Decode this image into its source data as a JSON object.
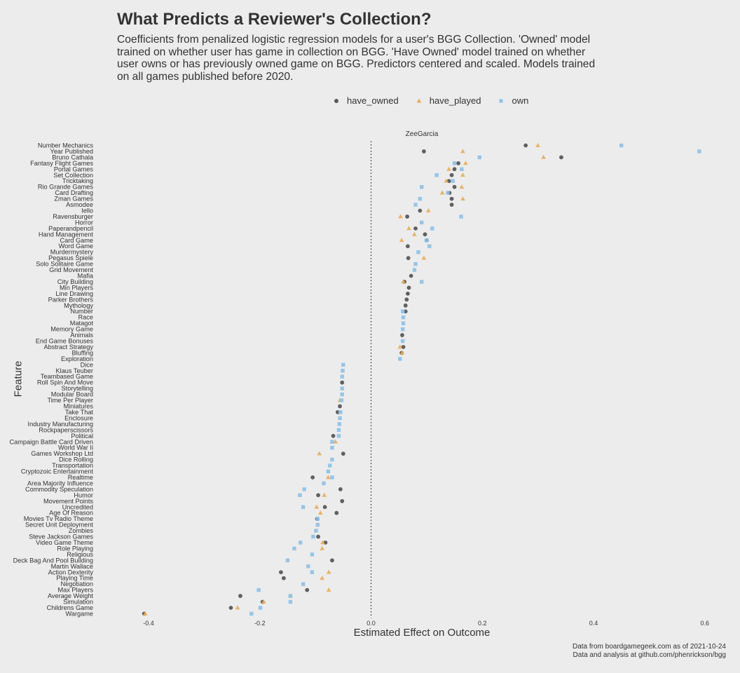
{
  "header": {
    "title": "What Predicts a Reviewer's Collection?",
    "subtitle": "Coefficients from penalized logistic regression models for a user's BGG Collection. 'Owned' model trained on whether user has game in collection on BGG. 'Have Owned' model trained on whether user owns or has previously owned game on BGG. Predictors centered and scaled. Models trained on all games published before 2020."
  },
  "legend": {
    "items": [
      {
        "label": "have_owned",
        "color": "#595959",
        "shape": "circle"
      },
      {
        "label": "have_played",
        "color": "#e6ae5c",
        "shape": "triangle"
      },
      {
        "label": "own",
        "color": "#8cc1e8",
        "shape": "square"
      }
    ]
  },
  "facet": "ZeeGarcia",
  "caption": {
    "line1": "Data from boardgamegeek.com as of 2021-10-24",
    "line2": "Data and analysis at github.com/phenrickson/bgg"
  },
  "chart_data": {
    "type": "scatter",
    "xlabel": "Estimated Effect on Outcome",
    "ylabel": "Feature",
    "xlim": [
      -0.44,
      0.64
    ],
    "x_ticks": [
      -0.4,
      -0.2,
      0.0,
      0.2,
      0.4,
      0.6
    ],
    "x_tick_labels": [
      "-0.4",
      "-0.2",
      "0.0",
      "0.2",
      "0.4",
      "0.6"
    ],
    "reference_line_x": 0,
    "grid": false,
    "legend_position": "top",
    "categories": [
      "Number Mechanics",
      "Year Published",
      "Bruno Cathala",
      "Fantasy Flight Games",
      "Portal Games",
      "Set Collection",
      "Tricktaking",
      "Rio Grande Games",
      "Card Drafting",
      "Zman Games",
      "Asmodee",
      "Iello",
      "Ravensburger",
      "Horror",
      "Paperandpencil",
      "Hand Management",
      "Card Game",
      "Word Game",
      "Murdermystery",
      "Pegasus Spiele",
      "Solo Solitaire Game",
      "Grid Movement",
      "Mafia",
      "City Building",
      "Min Players",
      "Line Drawing",
      "Parker Brothers",
      "Mythology",
      "Number",
      "Race",
      "Matagot",
      "Memory Game",
      "Animals",
      "End Game Bonuses",
      "Abstract Strategy",
      "Bluffing",
      "Exploration",
      "Dice",
      "Klaus Teuber",
      "Teambased Game",
      "Roll Spin And Move",
      "Storytelling",
      "Modular Board",
      "Time Per Player",
      "Miniatures",
      "Take That",
      "Enclosure",
      "Industry Manufacturing",
      "Rockpaperscissors",
      "Political",
      "Campaign Battle Card Driven",
      "World War Ii",
      "Games Workshop Ltd",
      "Dice Rolling",
      "Transportation",
      "Cryptozoic Entertainment",
      "Realtime",
      "Area Majority Influence",
      "Commodity Speculation",
      "Humor",
      "Movement Points",
      "Uncredited",
      "Age Of Reason",
      "Movies Tv Radio Theme",
      "Secret Unit Deployment",
      "Zombies",
      "Steve Jackson Games",
      "Video Game Theme",
      "Role Playing",
      "Religious",
      "Deck Bag And Pool Building",
      "Martin Wallace",
      "Action Dexterity",
      "Playing Time",
      "Negotiation",
      "Max Players",
      "Average Weight",
      "Simulation",
      "Childrens Game",
      "Wargame"
    ],
    "series": [
      {
        "name": "have_owned",
        "values": [
          0.278,
          0.095,
          0.342,
          0.157,
          0.15,
          0.145,
          0.14,
          0.15,
          0.141,
          0.145,
          0.145,
          0.088,
          0.065,
          null,
          0.08,
          0.097,
          0.1,
          0.066,
          null,
          0.067,
          null,
          null,
          0.072,
          0.06,
          0.068,
          0.066,
          0.064,
          0.062,
          0.062,
          null,
          null,
          null,
          0.056,
          null,
          0.058,
          0.055,
          null,
          null,
          null,
          null,
          -0.052,
          null,
          null,
          null,
          -0.056,
          -0.06,
          null,
          null,
          null,
          -0.068,
          null,
          null,
          -0.05,
          null,
          null,
          null,
          -0.105,
          null,
          -0.055,
          -0.095,
          -0.052,
          -0.083,
          -0.062,
          -0.097,
          null,
          null,
          -0.095,
          -0.082,
          null,
          null,
          -0.07,
          null,
          -0.162,
          -0.157,
          null,
          -0.115,
          -0.235,
          -0.195,
          -0.252,
          -0.408
        ]
      },
      {
        "name": "have_played",
        "values": [
          0.3,
          0.165,
          0.31,
          0.17,
          0.14,
          0.165,
          0.135,
          0.163,
          0.128,
          0.165,
          null,
          0.103,
          0.053,
          null,
          0.068,
          0.078,
          0.055,
          null,
          null,
          0.095,
          null,
          null,
          null,
          0.058,
          null,
          null,
          null,
          null,
          null,
          null,
          null,
          null,
          null,
          null,
          0.052,
          0.056,
          null,
          null,
          null,
          null,
          null,
          null,
          null,
          -0.056,
          null,
          null,
          null,
          null,
          null,
          null,
          -0.064,
          null,
          -0.093,
          null,
          null,
          null,
          -0.077,
          null,
          null,
          -0.084,
          null,
          -0.098,
          -0.091,
          null,
          null,
          null,
          null,
          -0.087,
          -0.088,
          null,
          null,
          null,
          -0.076,
          -0.088,
          null,
          -0.076,
          -0.145,
          -0.193,
          -0.24,
          -0.406
        ]
      },
      {
        "name": "own",
        "values": [
          0.45,
          0.59,
          0.195,
          0.15,
          0.163,
          0.118,
          0.147,
          0.091,
          0.138,
          0.088,
          0.08,
          null,
          0.162,
          0.091,
          0.11,
          null,
          0.1,
          0.105,
          0.085,
          null,
          0.08,
          0.078,
          null,
          0.091,
          null,
          null,
          null,
          null,
          0.057,
          0.058,
          0.058,
          0.057,
          null,
          0.057,
          null,
          null,
          0.052,
          -0.05,
          -0.051,
          -0.052,
          null,
          -0.052,
          -0.052,
          -0.053,
          null,
          -0.055,
          -0.056,
          -0.057,
          -0.058,
          -0.058,
          -0.07,
          -0.07,
          null,
          -0.07,
          -0.074,
          -0.077,
          -0.07,
          -0.085,
          -0.12,
          -0.128,
          null,
          -0.122,
          null,
          -0.096,
          -0.096,
          -0.099,
          -0.104,
          -0.127,
          -0.138,
          -0.106,
          -0.15,
          -0.113,
          -0.106,
          null,
          -0.122,
          -0.202,
          -0.145,
          -0.145,
          -0.199,
          -0.215
        ]
      }
    ]
  }
}
